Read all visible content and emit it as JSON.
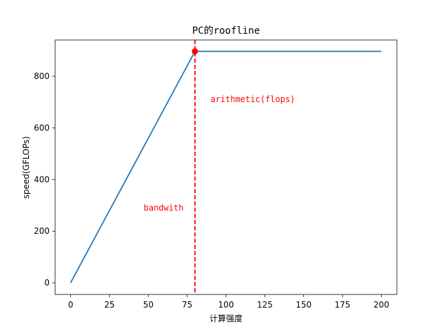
{
  "chart_data": {
    "type": "line",
    "title": "PC的roofline",
    "xlabel": "计算强度",
    "ylabel": "speed(GFLOPs)",
    "xlim": [
      -10,
      210
    ],
    "ylim": [
      -45,
      940
    ],
    "xticks": [
      0,
      25,
      50,
      75,
      100,
      125,
      150,
      175,
      200
    ],
    "yticks": [
      0,
      200,
      400,
      600,
      800
    ],
    "grid": false,
    "series": [
      {
        "color": "#1f77b4",
        "points": [
          [
            0,
            0
          ],
          [
            80,
            896
          ],
          [
            200,
            896
          ]
        ]
      }
    ],
    "ridge_point": {
      "x": 80,
      "y": 896,
      "color": "#ff0000"
    },
    "vline": {
      "x": 80,
      "color": "#ff0000",
      "style": "dashed"
    },
    "annotations": [
      {
        "text": "arithmetic(flops)",
        "x": 90,
        "y": 710,
        "color": "#ff0000"
      },
      {
        "text": "bandwith",
        "x": 47,
        "y": 290,
        "color": "#ff0000"
      }
    ]
  }
}
